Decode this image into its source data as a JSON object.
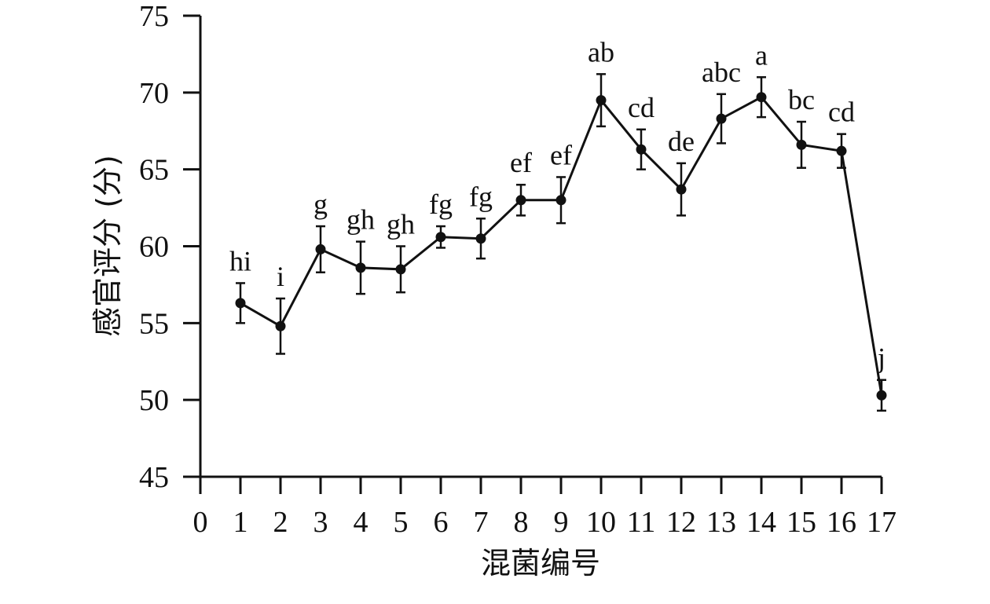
{
  "chart_data": {
    "type": "line",
    "xlabel": "混菌编号",
    "ylabel": "感官评分 (分)",
    "xlim": [
      0,
      17
    ],
    "ylim": [
      45,
      75
    ],
    "x_ticks": [
      "0",
      "1",
      "2",
      "3",
      "4",
      "5",
      "6",
      "7",
      "8",
      "9",
      "10",
      "11",
      "12",
      "13",
      "14",
      "15",
      "16",
      "17"
    ],
    "y_ticks": [
      "45",
      "50",
      "55",
      "60",
      "65",
      "70",
      "75"
    ],
    "grid": false,
    "series": [
      {
        "x": [
          1,
          2,
          3,
          4,
          5,
          6,
          7,
          8,
          9,
          10,
          11,
          12,
          13,
          14,
          15,
          16,
          17
        ],
        "y": [
          56.3,
          54.8,
          59.8,
          58.6,
          58.5,
          60.6,
          60.5,
          63.0,
          63.0,
          69.5,
          66.3,
          63.7,
          68.3,
          69.7,
          66.6,
          66.2,
          50.3
        ],
        "error": [
          1.3,
          1.8,
          1.5,
          1.7,
          1.5,
          0.7,
          1.3,
          1.0,
          1.5,
          1.7,
          1.3,
          1.7,
          1.6,
          1.3,
          1.5,
          1.1,
          1.0
        ],
        "labels": [
          "hi",
          "i",
          "g",
          "gh",
          "gh",
          "fg",
          "fg",
          "ef",
          "ef",
          "ab",
          "cd",
          "de",
          "abc",
          "a",
          "bc",
          "cd",
          "j"
        ],
        "color": "#111111"
      }
    ]
  }
}
